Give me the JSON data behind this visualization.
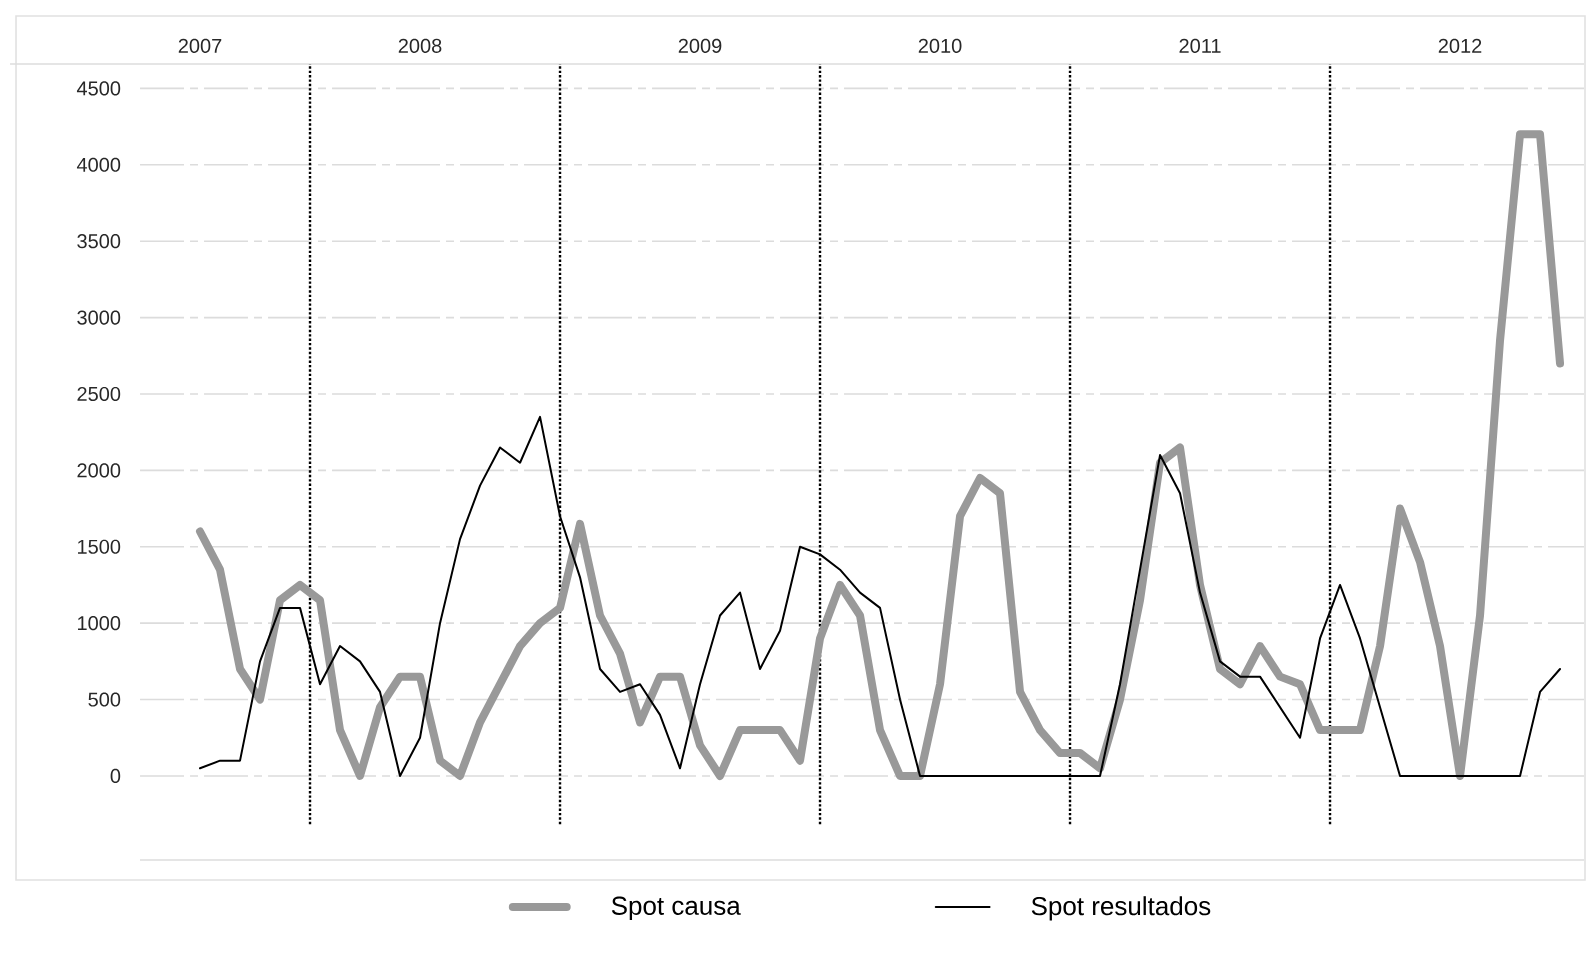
{
  "chart_data": {
    "type": "line",
    "categories": [
      "2007",
      null,
      null,
      null,
      null,
      null,
      null,
      null,
      null,
      null,
      null,
      "2008",
      null,
      null,
      null,
      null,
      null,
      null,
      null,
      null,
      null,
      null,
      null,
      null,
      null,
      "2009",
      null,
      null,
      null,
      null,
      null,
      null,
      null,
      null,
      null,
      null,
      null,
      "2010",
      null,
      null,
      null,
      null,
      null,
      null,
      null,
      null,
      null,
      null,
      null,
      null,
      "2011",
      null,
      null,
      null,
      null,
      null,
      null,
      null,
      null,
      null,
      null,
      null,
      null,
      "2012",
      null,
      null,
      null,
      null,
      null
    ],
    "ylim": [
      -550,
      4660
    ],
    "yticks": [
      0,
      500,
      1000,
      1500,
      2000,
      2500,
      3000,
      3500,
      4000,
      4500
    ],
    "grid": true,
    "legend": "bottom",
    "series": [
      {
        "name": "Spot causa",
        "color": "#999999",
        "values": [
          1600,
          1350,
          700,
          500,
          1150,
          1250,
          1150,
          300,
          0,
          450,
          650,
          650,
          100,
          0,
          350,
          600,
          850,
          1000,
          1100,
          1650,
          1050,
          800,
          350,
          650,
          650,
          200,
          0,
          300,
          300,
          300,
          100,
          900,
          1250,
          1050,
          300,
          0,
          0,
          600,
          1700,
          1950,
          1850,
          550,
          300,
          150,
          150,
          50,
          500,
          1150,
          2050,
          2150,
          1250,
          700,
          600,
          850,
          650,
          600,
          300,
          300,
          300,
          850,
          1750,
          1400,
          850,
          0,
          1050,
          2850,
          4200,
          4200,
          2700
        ]
      },
      {
        "name": "Spot resultados",
        "color": "#000000",
        "values": [
          50,
          100,
          100,
          750,
          1100,
          1100,
          600,
          850,
          750,
          550,
          0,
          250,
          1000,
          1550,
          1900,
          2150,
          2050,
          2350,
          1700,
          1300,
          700,
          550,
          600,
          400,
          50,
          600,
          1050,
          1200,
          700,
          950,
          1500,
          1450,
          1350,
          1200,
          1100,
          500,
          0,
          0,
          0,
          0,
          0,
          0,
          0,
          0,
          0,
          0,
          600,
          1350,
          2100,
          1850,
          1200,
          750,
          650,
          650,
          450,
          250,
          900,
          1250,
          900,
          450,
          0,
          0,
          0,
          0,
          0,
          0,
          0,
          550,
          700
        ]
      }
    ]
  }
}
